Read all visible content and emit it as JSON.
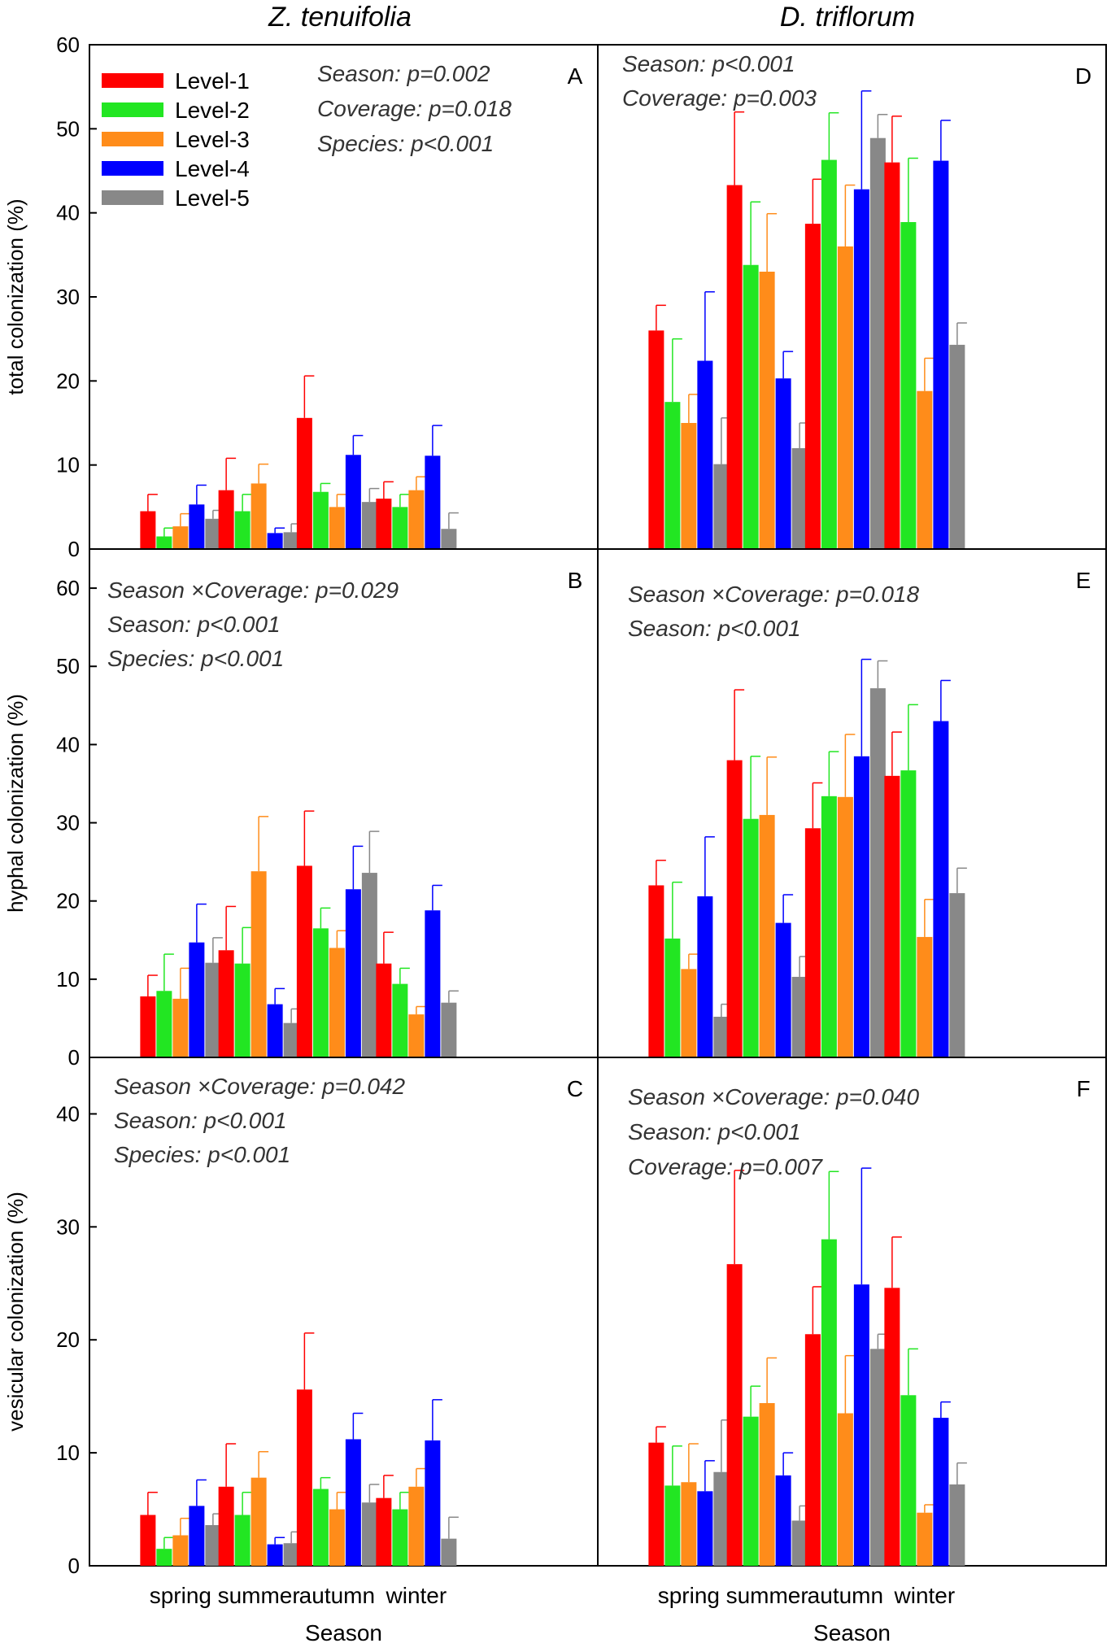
{
  "column_titles": [
    "Z. tenuifolia",
    "D. triflorum"
  ],
  "legend": {
    "items": [
      {
        "label": "Level-1",
        "color": "#ff0000"
      },
      {
        "label": "Level-2",
        "color": "#22e622"
      },
      {
        "label": "Level-3",
        "color": "#ff8c1a"
      },
      {
        "label": "Level-4",
        "color": "#0000ff"
      },
      {
        "label": "Level-5",
        "color": "#888888"
      }
    ]
  },
  "chart_data": [
    {
      "type": "bar",
      "panel": "A",
      "column": "Z. tenuifolia",
      "ylabel": "total colonization (%)",
      "xlabel": "",
      "ylim": [
        0,
        60
      ],
      "yticks": [
        0,
        10,
        20,
        30,
        40,
        50,
        60
      ],
      "categories": [
        "spring",
        "summer",
        "autumn",
        "winter"
      ],
      "annotations": [
        "Season: p=0.002",
        "Coverage: p=0.018",
        "Species: p<0.001"
      ],
      "series": [
        {
          "name": "Level-1",
          "values": [
            4.5,
            7.0,
            15.6,
            6.0
          ],
          "errors": [
            2.0,
            3.8,
            5.0,
            2.0
          ]
        },
        {
          "name": "Level-2",
          "values": [
            1.5,
            4.5,
            6.8,
            5.0
          ],
          "errors": [
            1.0,
            2.0,
            1.0,
            1.5
          ]
        },
        {
          "name": "Level-3",
          "values": [
            2.7,
            7.8,
            5.0,
            7.0
          ],
          "errors": [
            1.5,
            2.3,
            1.5,
            1.6
          ]
        },
        {
          "name": "Level-4",
          "values": [
            5.3,
            1.9,
            11.2,
            11.1
          ],
          "errors": [
            2.3,
            0.6,
            2.3,
            3.6
          ]
        },
        {
          "name": "Level-5",
          "values": [
            3.6,
            2.0,
            5.6,
            2.4
          ],
          "errors": [
            1.0,
            1.0,
            1.6,
            1.9
          ]
        }
      ]
    },
    {
      "type": "bar",
      "panel": "B",
      "column": "Z. tenuifolia",
      "ylabel": "hyphal colonization (%)",
      "xlabel": "",
      "ylim": [
        0,
        65
      ],
      "yticks": [
        0,
        10,
        20,
        30,
        40,
        50,
        60
      ],
      "categories": [
        "spring",
        "summer",
        "autumn",
        "winter"
      ],
      "annotations": [
        "Season ×Coverage: p=0.029",
        "Season: p<0.001",
        "Species: p<0.001"
      ],
      "series": [
        {
          "name": "Level-1",
          "values": [
            7.8,
            13.7,
            24.5,
            12.0
          ],
          "errors": [
            2.7,
            5.6,
            7.0,
            4.0
          ]
        },
        {
          "name": "Level-2",
          "values": [
            8.5,
            12.0,
            16.5,
            9.4
          ],
          "errors": [
            4.7,
            4.6,
            2.6,
            2.0
          ]
        },
        {
          "name": "Level-3",
          "values": [
            7.5,
            23.8,
            14.0,
            5.5
          ],
          "errors": [
            3.9,
            7.0,
            2.2,
            1.0
          ]
        },
        {
          "name": "Level-4",
          "values": [
            14.7,
            6.8,
            21.5,
            18.8
          ],
          "errors": [
            4.9,
            2.0,
            5.5,
            3.2
          ]
        },
        {
          "name": "Level-5",
          "values": [
            12.1,
            4.4,
            23.6,
            7.0
          ],
          "errors": [
            3.2,
            1.8,
            5.3,
            1.5
          ]
        }
      ]
    },
    {
      "type": "bar",
      "panel": "C",
      "column": "Z. tenuifolia",
      "ylabel": "vesicular colonization (%)",
      "xlabel": "Season",
      "ylim": [
        0,
        45
      ],
      "yticks": [
        0,
        10,
        20,
        30,
        40
      ],
      "categories": [
        "spring",
        "summer",
        "autumn",
        "winter"
      ],
      "annotations": [
        "Season ×Coverage: p=0.042",
        "Season: p<0.001",
        "Species: p<0.001"
      ],
      "series": [
        {
          "name": "Level-1",
          "values": [
            4.5,
            7.0,
            15.6,
            6.0
          ],
          "errors": [
            2.0,
            3.8,
            5.0,
            2.0
          ]
        },
        {
          "name": "Level-2",
          "values": [
            1.5,
            4.5,
            6.8,
            5.0
          ],
          "errors": [
            1.0,
            2.0,
            1.0,
            1.5
          ]
        },
        {
          "name": "Level-3",
          "values": [
            2.7,
            7.8,
            5.0,
            7.0
          ],
          "errors": [
            1.5,
            2.3,
            1.5,
            1.6
          ]
        },
        {
          "name": "Level-4",
          "values": [
            5.3,
            1.9,
            11.2,
            11.1
          ],
          "errors": [
            2.3,
            0.6,
            2.3,
            3.6
          ]
        },
        {
          "name": "Level-5",
          "values": [
            3.6,
            2.0,
            5.6,
            2.4
          ],
          "errors": [
            1.0,
            1.0,
            1.6,
            1.9
          ]
        }
      ]
    },
    {
      "type": "bar",
      "panel": "D",
      "column": "D. triflorum",
      "ylabel": "",
      "xlabel": "",
      "ylim": [
        0,
        60
      ],
      "yticks": [],
      "categories": [
        "spring",
        "summer",
        "autumn",
        "winter"
      ],
      "annotations": [
        "Season: p<0.001",
        "Coverage: p=0.003"
      ],
      "series": [
        {
          "name": "Level-1",
          "values": [
            26.0,
            43.3,
            38.7,
            46.0
          ],
          "errors": [
            3.0,
            8.7,
            5.3,
            5.5
          ]
        },
        {
          "name": "Level-2",
          "values": [
            17.5,
            33.8,
            46.3,
            38.9
          ],
          "errors": [
            7.5,
            7.5,
            5.6,
            7.6
          ]
        },
        {
          "name": "Level-3",
          "values": [
            15.0,
            33.0,
            36.0,
            18.8
          ],
          "errors": [
            3.4,
            6.9,
            7.3,
            3.9
          ]
        },
        {
          "name": "Level-4",
          "values": [
            22.4,
            20.3,
            42.8,
            46.2
          ],
          "errors": [
            8.2,
            3.2,
            11.7,
            4.8
          ]
        },
        {
          "name": "Level-5",
          "values": [
            10.1,
            12.0,
            48.9,
            24.3
          ],
          "errors": [
            5.5,
            3.0,
            2.8,
            2.6
          ]
        }
      ]
    },
    {
      "type": "bar",
      "panel": "E",
      "column": "D. triflorum",
      "ylabel": "",
      "xlabel": "",
      "ylim": [
        0,
        65
      ],
      "yticks": [],
      "categories": [
        "spring",
        "summer",
        "autumn",
        "winter"
      ],
      "annotations": [
        "Season ×Coverage: p=0.018",
        "Season: p<0.001"
      ],
      "series": [
        {
          "name": "Level-1",
          "values": [
            22.0,
            38.0,
            29.3,
            36.0
          ],
          "errors": [
            3.2,
            9.0,
            5.8,
            5.6
          ]
        },
        {
          "name": "Level-2",
          "values": [
            15.2,
            30.5,
            33.4,
            36.7
          ],
          "errors": [
            7.2,
            8.0,
            5.7,
            8.4
          ]
        },
        {
          "name": "Level-3",
          "values": [
            11.3,
            31.0,
            33.3,
            15.4
          ],
          "errors": [
            1.9,
            7.4,
            8.0,
            4.8
          ]
        },
        {
          "name": "Level-4",
          "values": [
            20.6,
            17.2,
            38.5,
            43.0
          ],
          "errors": [
            7.6,
            3.6,
            12.4,
            5.2
          ]
        },
        {
          "name": "Level-5",
          "values": [
            5.2,
            10.3,
            47.2,
            21.0
          ],
          "errors": [
            1.6,
            2.6,
            3.5,
            3.2
          ]
        }
      ]
    },
    {
      "type": "bar",
      "panel": "F",
      "column": "D. triflorum",
      "ylabel": "",
      "xlabel": "Season",
      "ylim": [
        0,
        45
      ],
      "yticks": [],
      "categories": [
        "spring",
        "summer",
        "autumn",
        "winter"
      ],
      "annotations": [
        "Season ×Coverage: p=0.040",
        "Season: p<0.001",
        "Coverage: p=0.007"
      ],
      "series": [
        {
          "name": "Level-1",
          "values": [
            10.9,
            26.7,
            20.5,
            24.6
          ],
          "errors": [
            1.4,
            8.3,
            4.2,
            4.5
          ]
        },
        {
          "name": "Level-2",
          "values": [
            7.1,
            13.2,
            28.9,
            15.1
          ],
          "errors": [
            3.5,
            2.7,
            6.0,
            4.1
          ]
        },
        {
          "name": "Level-3",
          "values": [
            7.4,
            14.4,
            13.5,
            4.7
          ],
          "errors": [
            3.4,
            4.0,
            5.1,
            0.7
          ]
        },
        {
          "name": "Level-4",
          "values": [
            6.6,
            8.0,
            24.9,
            13.1
          ],
          "errors": [
            2.7,
            2.0,
            10.3,
            1.4
          ]
        },
        {
          "name": "Level-5",
          "values": [
            8.3,
            4.0,
            19.2,
            7.2
          ],
          "errors": [
            4.6,
            1.3,
            1.3,
            1.9
          ]
        }
      ]
    }
  ]
}
